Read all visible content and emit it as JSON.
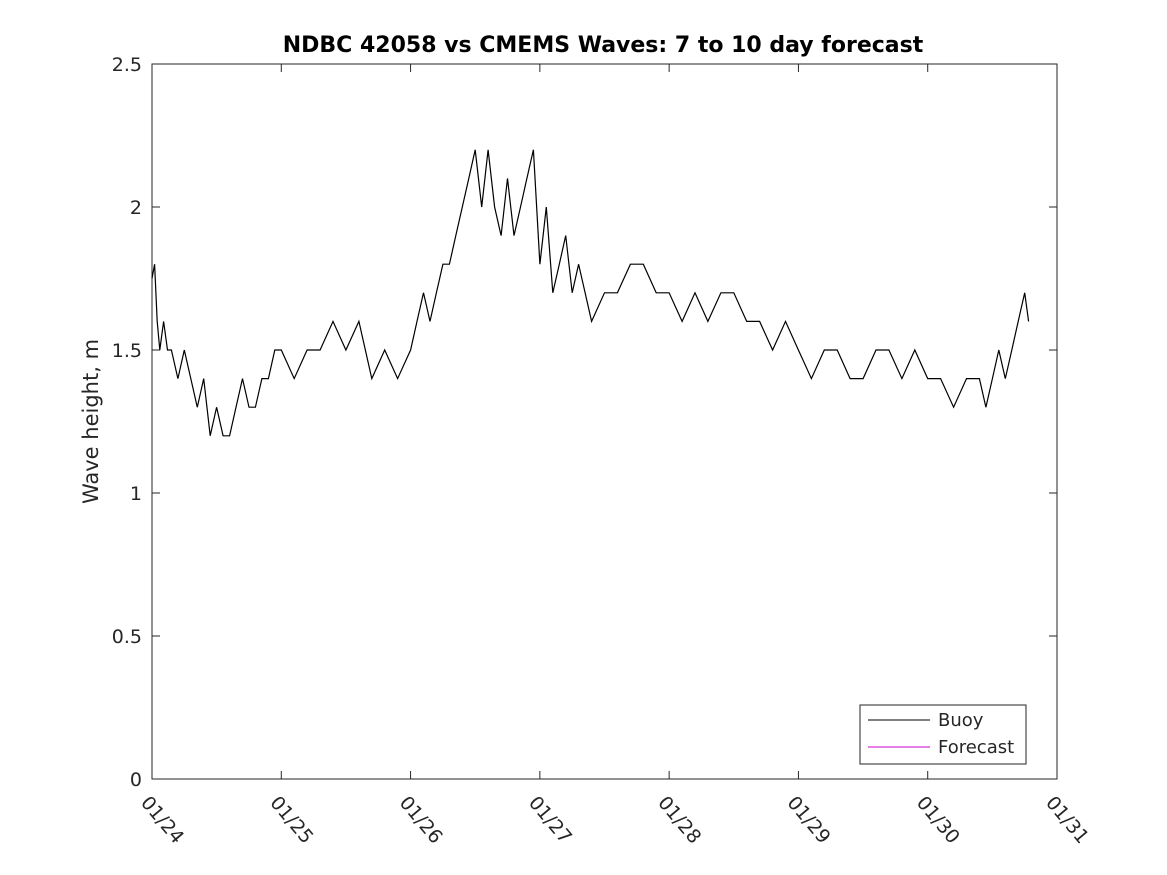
{
  "chart_data": {
    "type": "line",
    "title": "NDBC 42058 vs CMEMS Waves: 7 to 10 day forecast",
    "xlabel": "",
    "ylabel": "Wave height, m",
    "x_ticks": [
      "01/24",
      "01/25",
      "01/26",
      "01/27",
      "01/28",
      "01/29",
      "01/30",
      "01/31"
    ],
    "y_ticks": [
      "0",
      "0.5",
      "1",
      "1.5",
      "2",
      "2.5"
    ],
    "xlim": [
      "01/24 00:00",
      "01/31 00:00"
    ],
    "ylim": [
      0,
      2.5
    ],
    "grid": false,
    "legend": {
      "location": "bottom-right",
      "entries": [
        "Buoy",
        "Forecast"
      ]
    },
    "series": [
      {
        "name": "Buoy",
        "color": "#000000",
        "note_units": "x in days since 01/24 00:00",
        "x": [
          0,
          0.02,
          0.04,
          0.06,
          0.09,
          0.12,
          0.15,
          0.2,
          0.25,
          0.3,
          0.35,
          0.4,
          0.45,
          0.5,
          0.55,
          0.6,
          0.65,
          0.7,
          0.75,
          0.8,
          0.85,
          0.9,
          0.95,
          1.0,
          1.1,
          1.2,
          1.3,
          1.4,
          1.5,
          1.6,
          1.7,
          1.8,
          1.9,
          2.0,
          2.05,
          2.1,
          2.15,
          2.2,
          2.25,
          2.3,
          2.35,
          2.4,
          2.45,
          2.5,
          2.55,
          2.6,
          2.65,
          2.7,
          2.75,
          2.8,
          2.85,
          2.9,
          2.95,
          3.0,
          3.05,
          3.1,
          3.15,
          3.2,
          3.25,
          3.3,
          3.35,
          3.4,
          3.5,
          3.6,
          3.7,
          3.8,
          3.9,
          4.0,
          4.1,
          4.2,
          4.3,
          4.4,
          4.5,
          4.6,
          4.7,
          4.8,
          4.9,
          5.0,
          5.1,
          5.2,
          5.3,
          5.4,
          5.5,
          5.6,
          5.7,
          5.8,
          5.9,
          6.0,
          6.1,
          6.2,
          6.3,
          6.4,
          6.45,
          6.5,
          6.55,
          6.6,
          6.65,
          6.7,
          6.75,
          6.78
        ],
        "y": [
          1.75,
          1.8,
          1.6,
          1.5,
          1.6,
          1.5,
          1.5,
          1.4,
          1.5,
          1.4,
          1.3,
          1.4,
          1.2,
          1.3,
          1.2,
          1.2,
          1.3,
          1.4,
          1.3,
          1.3,
          1.4,
          1.4,
          1.5,
          1.5,
          1.4,
          1.5,
          1.5,
          1.6,
          1.5,
          1.6,
          1.4,
          1.5,
          1.4,
          1.5,
          1.6,
          1.7,
          1.6,
          1.7,
          1.8,
          1.8,
          1.9,
          2.0,
          2.1,
          2.2,
          2.0,
          2.2,
          2.0,
          1.9,
          2.1,
          1.9,
          2.0,
          2.1,
          2.2,
          1.8,
          2.0,
          1.7,
          1.8,
          1.9,
          1.7,
          1.8,
          1.7,
          1.6,
          1.7,
          1.7,
          1.8,
          1.8,
          1.7,
          1.7,
          1.6,
          1.7,
          1.6,
          1.7,
          1.7,
          1.6,
          1.6,
          1.5,
          1.6,
          1.5,
          1.4,
          1.5,
          1.5,
          1.4,
          1.4,
          1.5,
          1.5,
          1.4,
          1.5,
          1.4,
          1.4,
          1.3,
          1.4,
          1.4,
          1.3,
          1.4,
          1.5,
          1.4,
          1.5,
          1.6,
          1.7,
          1.6
        ]
      },
      {
        "name": "Forecast",
        "color": "#cc00cc",
        "x": [],
        "y": []
      }
    ]
  }
}
